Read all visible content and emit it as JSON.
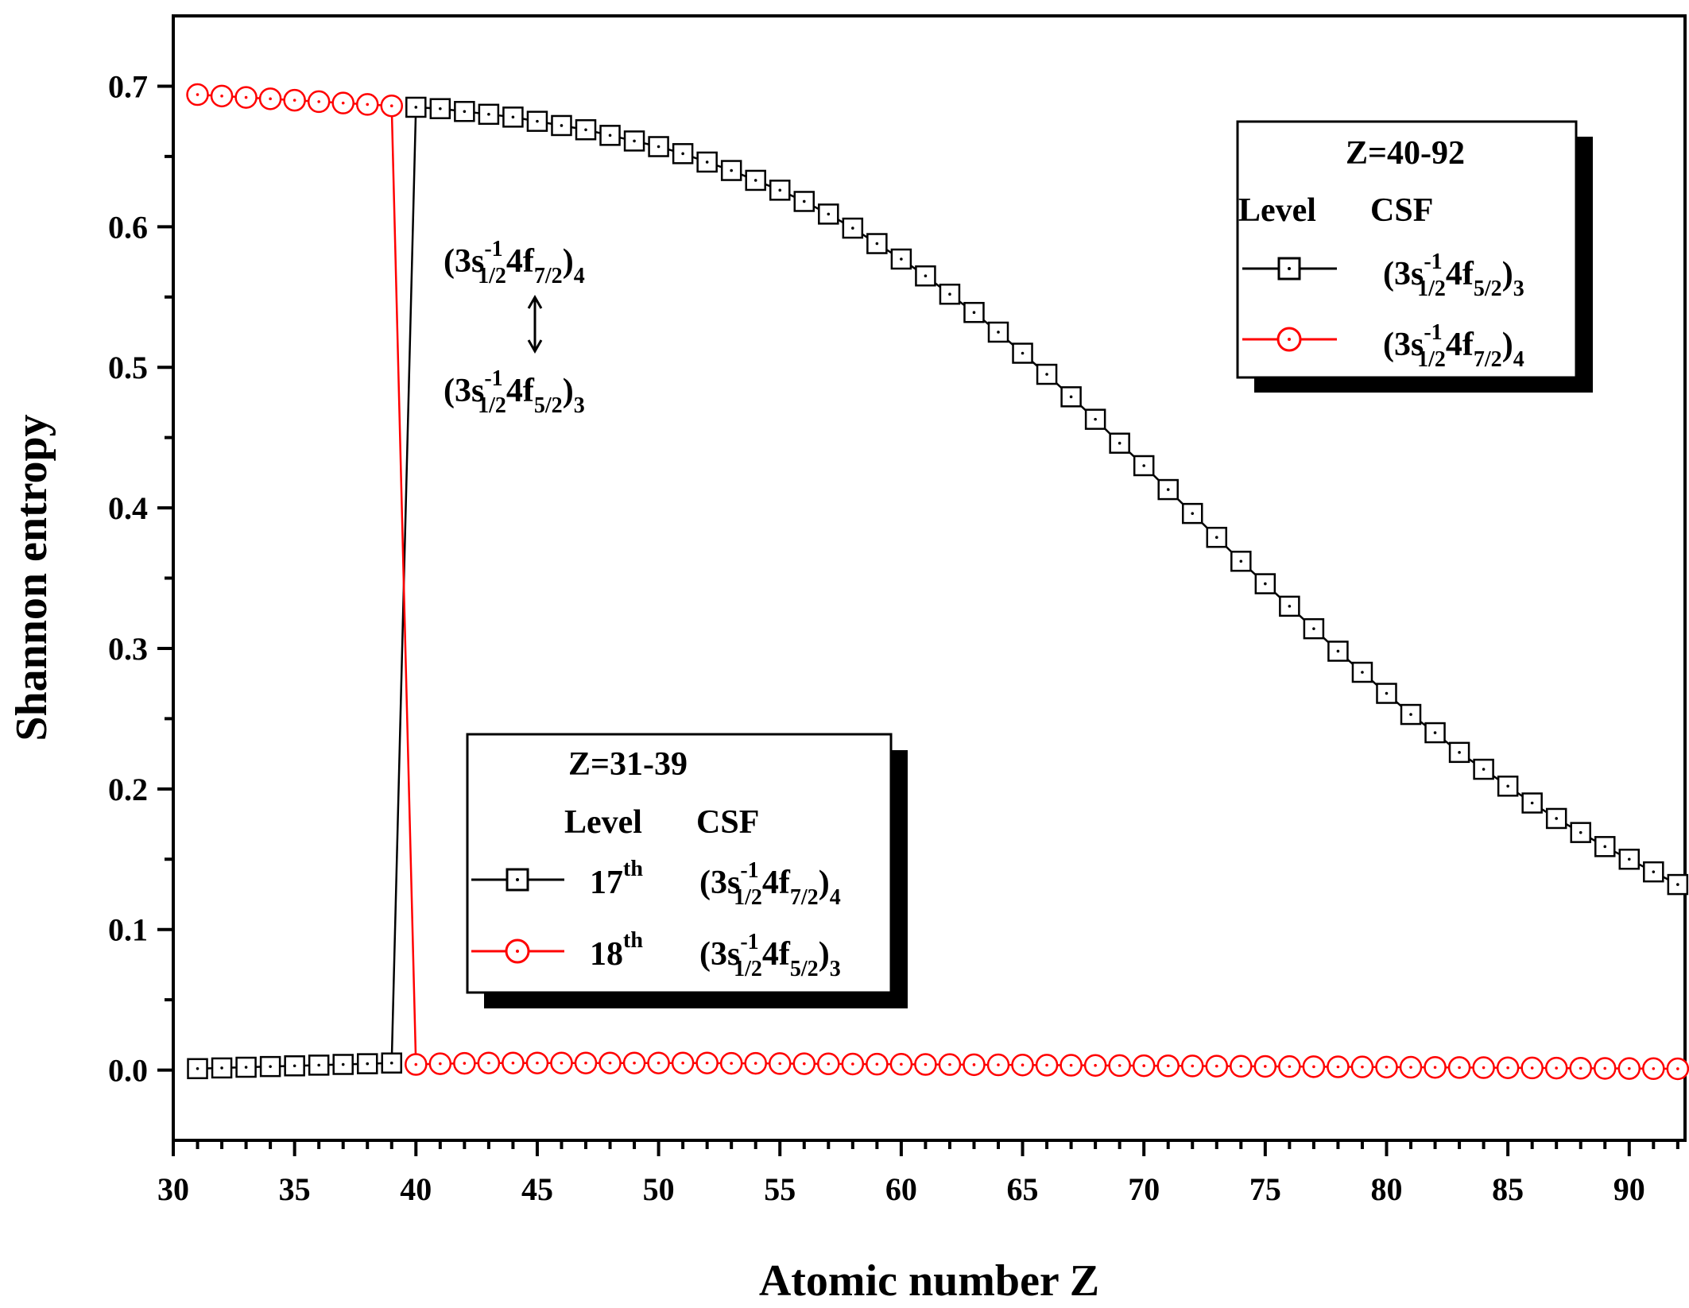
{
  "chart_data": {
    "type": "line",
    "xlabel": "Atomic number Z",
    "ylabel": "Shannon entropy",
    "xlim": [
      30,
      92.3
    ],
    "ylim": [
      -0.05,
      0.75
    ],
    "x_ticks": [
      30,
      35,
      40,
      45,
      50,
      55,
      60,
      65,
      70,
      75,
      80,
      85,
      90
    ],
    "y_ticks": [
      0.0,
      0.1,
      0.2,
      0.3,
      0.4,
      0.5,
      0.6,
      0.7
    ],
    "x_tick_labels": [
      "30",
      "35",
      "40",
      "45",
      "50",
      "55",
      "60",
      "65",
      "70",
      "75",
      "80",
      "85",
      "90"
    ],
    "y_tick_labels": [
      "0.0",
      "0.1",
      "0.2",
      "0.3",
      "0.4",
      "0.5",
      "0.6",
      "0.7"
    ],
    "grid": false,
    "colors": {
      "black": "#000000",
      "red": "#ff0000"
    },
    "series": [
      {
        "color": "#000000",
        "marker": "square",
        "x": [
          31,
          32,
          33,
          34,
          35,
          36,
          37,
          38,
          39,
          40,
          41,
          42,
          43,
          44,
          45,
          46,
          47,
          48,
          49,
          50,
          51,
          52,
          53,
          54,
          55,
          56,
          57,
          58,
          59,
          60,
          61,
          62,
          63,
          64,
          65,
          66,
          67,
          68,
          69,
          70,
          71,
          72,
          73,
          74,
          75,
          76,
          77,
          78,
          79,
          80,
          81,
          82,
          83,
          84,
          85,
          86,
          87,
          88,
          89,
          90,
          91,
          92
        ],
        "y": [
          0.001,
          0.0015,
          0.002,
          0.0025,
          0.003,
          0.0035,
          0.004,
          0.0045,
          0.005,
          0.685,
          0.684,
          0.682,
          0.68,
          0.678,
          0.675,
          0.672,
          0.669,
          0.665,
          0.661,
          0.657,
          0.652,
          0.646,
          0.64,
          0.633,
          0.626,
          0.618,
          0.609,
          0.599,
          0.588,
          0.577,
          0.565,
          0.552,
          0.539,
          0.525,
          0.51,
          0.495,
          0.479,
          0.463,
          0.446,
          0.43,
          0.413,
          0.396,
          0.379,
          0.362,
          0.346,
          0.33,
          0.314,
          0.298,
          0.283,
          0.268,
          0.253,
          0.24,
          0.226,
          0.214,
          0.202,
          0.19,
          0.179,
          0.169,
          0.159,
          0.15,
          0.141,
          0.132
        ]
      },
      {
        "color": "#ff0000",
        "marker": "circle",
        "x": [
          31,
          32,
          33,
          34,
          35,
          36,
          37,
          38,
          39,
          40,
          41,
          42,
          43,
          44,
          45,
          46,
          47,
          48,
          49,
          50,
          51,
          52,
          53,
          54,
          55,
          56,
          57,
          58,
          59,
          60,
          61,
          62,
          63,
          64,
          65,
          66,
          67,
          68,
          69,
          70,
          71,
          72,
          73,
          74,
          75,
          76,
          77,
          78,
          79,
          80,
          81,
          82,
          83,
          84,
          85,
          86,
          87,
          88,
          89,
          90,
          91,
          92
        ],
        "y": [
          0.694,
          0.693,
          0.692,
          0.691,
          0.69,
          0.689,
          0.688,
          0.687,
          0.686,
          0.004,
          0.0045,
          0.0048,
          0.005,
          0.005,
          0.005,
          0.005,
          0.005,
          0.005,
          0.005,
          0.005,
          0.005,
          0.005,
          0.0048,
          0.0048,
          0.0046,
          0.0045,
          0.0044,
          0.0043,
          0.0042,
          0.0041,
          0.004,
          0.0039,
          0.0038,
          0.0037,
          0.0036,
          0.0035,
          0.0034,
          0.0033,
          0.0032,
          0.0031,
          0.003,
          0.0029,
          0.0028,
          0.0027,
          0.0026,
          0.0025,
          0.0024,
          0.0023,
          0.0022,
          0.0021,
          0.002,
          0.0019,
          0.0018,
          0.0017,
          0.0016,
          0.0015,
          0.0014,
          0.0013,
          0.0012,
          0.0011,
          0.001,
          0.0009
        ]
      }
    ],
    "legends": [
      {
        "placement": "top-right",
        "title": "Z=40-92",
        "col_level": "Level",
        "col_csf": "CSF",
        "entries": [
          {
            "level": "",
            "csf": "(3s-1 1/2 4f5/2)3",
            "csf_main_1": "(3s",
            "csf_sup": "-1",
            "csf_sub_1": "1/2",
            "csf_main_2": "4f",
            "csf_sub_2": "5/2",
            "csf_main_3": ")",
            "csf_sub_3": "3"
          },
          {
            "level": "",
            "csf": "(3s-1 1/2 4f7/2)4",
            "csf_main_1": "(3s",
            "csf_sup": "-1",
            "csf_sub_1": "1/2",
            "csf_main_2": "4f",
            "csf_sub_2": "7/2",
            "csf_main_3": ")",
            "csf_sub_3": "4"
          }
        ]
      },
      {
        "placement": "lower-center",
        "title": "Z=31-39",
        "col_level": "Level",
        "col_csf": "CSF",
        "entries": [
          {
            "level_num": "17",
            "level_sup": "th",
            "csf_main_1": "(3s",
            "csf_sup": "-1",
            "csf_sub_1": "1/2",
            "csf_main_2": "4f",
            "csf_sub_2": "7/2",
            "csf_main_3": ")",
            "csf_sub_3": "4"
          },
          {
            "level_num": "18",
            "level_sup": "th",
            "csf_main_1": "(3s",
            "csf_sup": "-1",
            "csf_sub_1": "1/2",
            "csf_main_2": "4f",
            "csf_sub_2": "5/2",
            "csf_main_3": ")",
            "csf_sub_3": "3"
          }
        ]
      }
    ],
    "annotation": {
      "top": {
        "main_1": "(3s",
        "sup": "-1",
        "sub_1": "1/2",
        "main_2": "4f",
        "sub_2": "7/2",
        "main_3": ")",
        "sub_3": "4"
      },
      "bottom": {
        "main_1": "(3s",
        "sup": "-1",
        "sub_1": "1/2",
        "main_2": "4f",
        "sub_2": "5/2",
        "main_3": ")",
        "sub_3": "3"
      },
      "arrow": "double-headed vertical"
    }
  }
}
